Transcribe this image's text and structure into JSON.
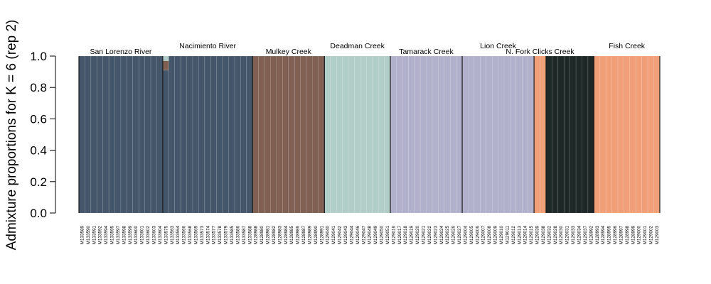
{
  "chart_data": {
    "type": "bar",
    "stacked": true,
    "ylabel": "Admixture proportions for K = 6 (rep 2)",
    "ylim": [
      0,
      1
    ],
    "yticks": [
      "0.0",
      "0.2",
      "0.4",
      "0.6",
      "0.8",
      "1.0"
    ],
    "grid": false,
    "cluster_colors": [
      "#44576a",
      "#7f6053",
      "#b1cdc8",
      "#b2b1cb",
      "#1e2826",
      "#f19f79"
    ],
    "populations": [
      {
        "name": "San Lorenzo River",
        "dominant": 0,
        "samples": [
          "M133589",
          "M133590",
          "M133591",
          "M133592",
          "M133594",
          "M133595",
          "M133597",
          "M133598",
          "M133599",
          "M133600",
          "M133601",
          "M133602",
          "M133603",
          "M133604"
        ]
      },
      {
        "name": "Nacimiento River",
        "dominant": 0,
        "samples": [
          "M133575",
          "M133563",
          "M133564",
          "M133566",
          "M133568",
          "M133569",
          "M133573",
          "M133574",
          "M133577",
          "M133578",
          "M133579",
          "M133585",
          "M133586",
          "M133587",
          "M133588"
        ]
      },
      {
        "name": "Mulkey Creek",
        "dominant": 1,
        "samples": [
          "M128988",
          "M128980",
          "M128981",
          "M128982",
          "M128983",
          "M128984",
          "M128985",
          "M128986",
          "M128987",
          "M128989",
          "M128990",
          "M128991"
        ]
      },
      {
        "name": "Deadman Creek",
        "dominant": 2,
        "samples": [
          "M129040",
          "M129041",
          "M129042",
          "M129043",
          "M129044",
          "M129046",
          "M129047",
          "M129048",
          "M129049",
          "M129050",
          "M129051"
        ]
      },
      {
        "name": "Tamarack Creek",
        "dominant": 3,
        "samples": [
          "M129016",
          "M129017",
          "M129018",
          "M129019",
          "M129020",
          "M129021",
          "M129022",
          "M129023",
          "M129024",
          "M129025",
          "M129026",
          "M129027"
        ]
      },
      {
        "name": "Lion Creek",
        "dominant": 3,
        "samples": [
          "M129004",
          "M129005",
          "M129006",
          "M129007",
          "M129008",
          "M129009",
          "M129010",
          "M129011",
          "M129012",
          "M129013",
          "M129014",
          "M129015"
        ]
      },
      {
        "name": "N. Fork Clicks Creek",
        "dominant": 5,
        "samples": [
          "M129039",
          "M129038"
        ]
      },
      {
        "name": "N. Fork Clicks Creek",
        "dominant": 4,
        "samples": [
          "M129032",
          "M129028",
          "M129030",
          "M129031",
          "M129033",
          "M129034",
          "M129037",
          "M128992"
        ]
      },
      {
        "name": "Fish Creek",
        "dominant": 5,
        "samples": [
          "M128993",
          "M128994",
          "M128995",
          "M128996",
          "M128997",
          "M128998",
          "M128999",
          "M129000",
          "M129001",
          "M129002",
          "M129003"
        ]
      }
    ],
    "admixed_samples": [
      {
        "sample": "M133575",
        "proportions": [
          0.91,
          0.06,
          0.03,
          0,
          0,
          0
        ]
      }
    ]
  }
}
